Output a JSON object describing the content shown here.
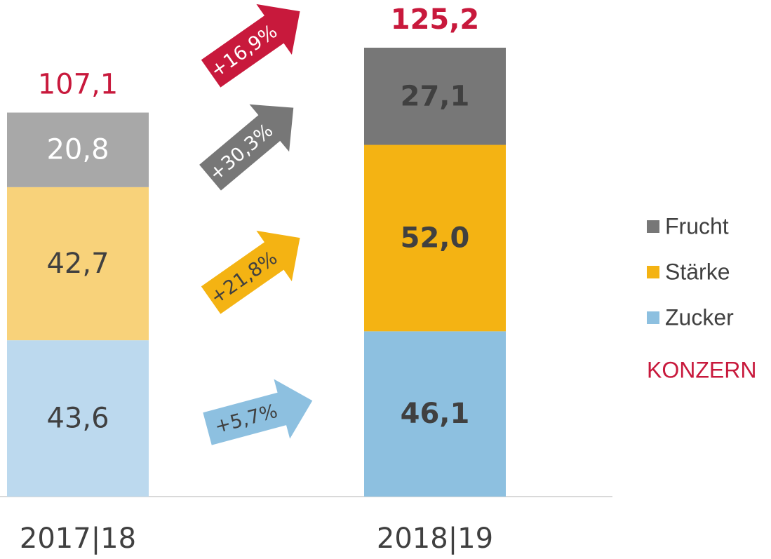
{
  "chart_data": {
    "type": "stacked_bar",
    "categories": [
      "2017|18",
      "2018|19"
    ],
    "series": [
      {
        "name": "Zucker",
        "colors": [
          "#bcd9ee",
          "#8dc0e0"
        ],
        "values": [
          43.6,
          46.1
        ],
        "value_labels": [
          "43,6",
          "46,1"
        ]
      },
      {
        "name": "Stärke",
        "colors": [
          "#f8d27a",
          "#f4b313"
        ],
        "values": [
          42.7,
          52.0
        ],
        "value_labels": [
          "42,7",
          "52,0"
        ]
      },
      {
        "name": "Frucht",
        "colors": [
          "#a8a8a8",
          "#777777"
        ],
        "values": [
          20.8,
          27.1
        ],
        "value_labels": [
          "20,8",
          "27,1"
        ]
      }
    ],
    "totals": {
      "name": "KONZERN",
      "color": "#c8193c",
      "values": [
        107.1,
        125.2
      ],
      "value_labels": [
        "107,1",
        "125,2"
      ]
    },
    "annotations": [
      "+5,7%",
      "+21,8%",
      "+30,3%",
      "+16,9%"
    ]
  }
}
